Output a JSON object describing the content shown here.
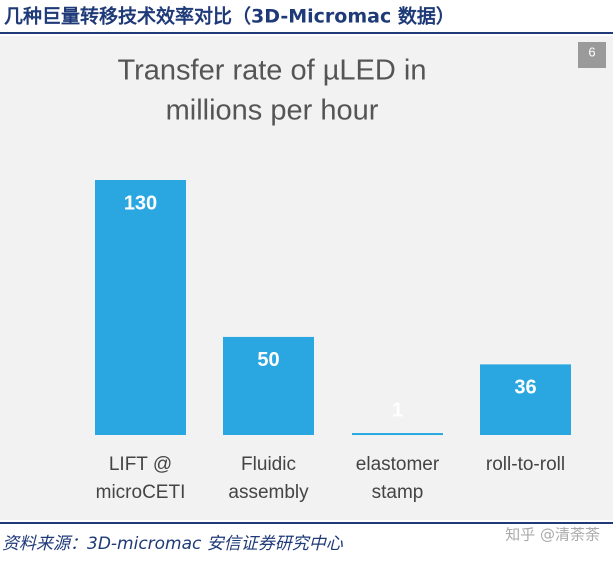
{
  "header": {
    "title": "几种巨量转移技术效率对比（3D-Micromac 数据）",
    "slide_number": "6"
  },
  "chart_data": {
    "type": "bar",
    "title": [
      "Transfer rate of µLED in",
      "millions per hour"
    ],
    "categories": [
      [
        "LIFT @",
        "microCETI"
      ],
      [
        "Fluidic",
        "assembly"
      ],
      [
        "elastomer",
        "stamp"
      ],
      [
        "roll-to-roll"
      ]
    ],
    "values": [
      130,
      50,
      1,
      36
    ],
    "color": "#2aa7e1"
  },
  "footer": {
    "source": "资料来源：3D-micromac 安信证券研究中心",
    "watermark": "知乎 @清荼荼"
  }
}
